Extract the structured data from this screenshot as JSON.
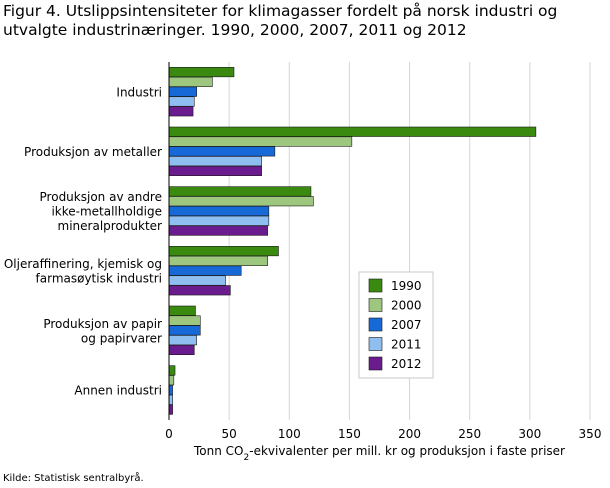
{
  "figure": {
    "title_line1": "Figur 4. Utslippsintensiteter for klimagasser fordelt på norsk industri og",
    "title_line2": "utvalgte industrinæringer. 1990, 2000, 2007, 2011 og 2012",
    "source": "Kilde: Statistisk sentralbyrå."
  },
  "chart_data": {
    "type": "bar",
    "orientation": "horizontal",
    "title": "Utslippsintensiteter for klimagasser fordelt på norsk industri og utvalgte industrinæringer. 1990, 2000, 2007, 2011 og 2012",
    "xlabel_parts": [
      "Tonn CO",
      "2",
      "-ekvivalenter per mill. kr og produksjon i faste priser"
    ],
    "ylabel": "",
    "xlim": [
      0,
      350
    ],
    "xticks": [
      0,
      50,
      100,
      150,
      200,
      250,
      300,
      350
    ],
    "grid": true,
    "legend_position": "right",
    "categories": [
      [
        "Industri"
      ],
      [
        "Produksjon av metaller"
      ],
      [
        "Produksjon av andre",
        "ikke-metallholdige",
        "mineralprodukter"
      ],
      [
        "Oljeraffinering, kjemisk og",
        "farmasøytisk industri"
      ],
      [
        "Produksjon av papir",
        "og papirvarer"
      ],
      [
        "Annen industri"
      ]
    ],
    "series": [
      {
        "name": "1990",
        "color": "#3a8a0f",
        "values": [
          54,
          305,
          118,
          91,
          22,
          5
        ]
      },
      {
        "name": "2000",
        "color": "#9dc77e",
        "values": [
          36,
          152,
          120,
          82,
          26,
          4
        ]
      },
      {
        "name": "2007",
        "color": "#1769d8",
        "values": [
          23,
          88,
          83,
          60,
          26,
          3
        ]
      },
      {
        "name": "2011",
        "color": "#8fbef0",
        "values": [
          21,
          77,
          83,
          47,
          23,
          3
        ]
      },
      {
        "name": "2012",
        "color": "#6a1b8e",
        "values": [
          20,
          77,
          82,
          51,
          21,
          3
        ]
      }
    ]
  }
}
